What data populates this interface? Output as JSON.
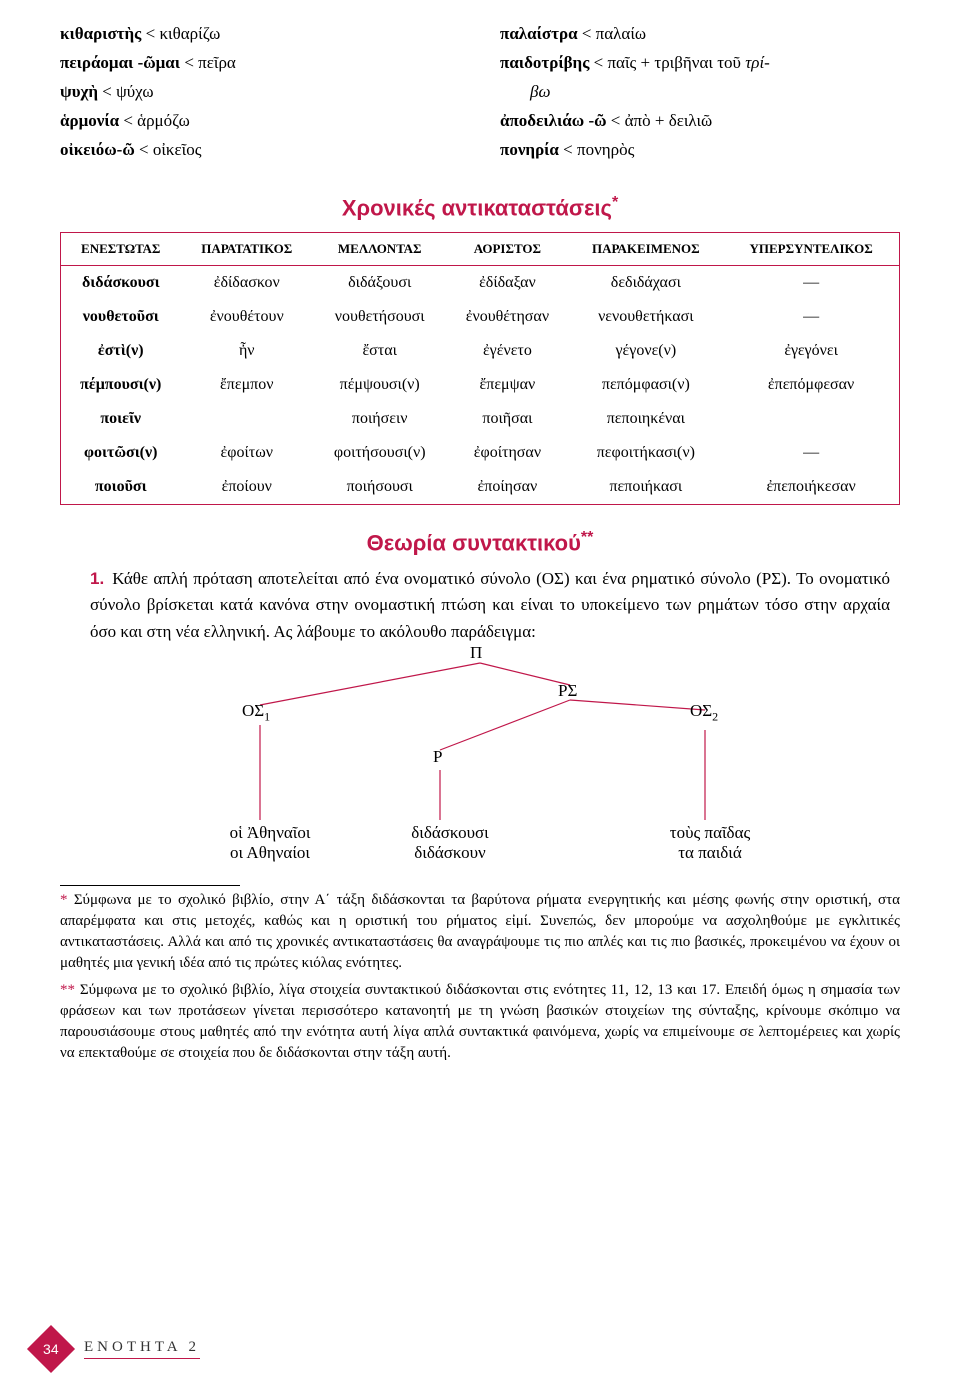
{
  "etymology": {
    "left": [
      [
        {
          "t": "κιθαριστὴς",
          "b": true
        },
        {
          "t": " < κιθαρίζω"
        }
      ],
      [
        {
          "t": "πειράομαι -ῶμαι",
          "b": true
        },
        {
          "t": " < πεῖρα"
        }
      ],
      [
        {
          "t": "ψυχὴ",
          "b": true
        },
        {
          "t": " < ψύχω"
        }
      ],
      [
        {
          "t": "ἁρμονία",
          "b": true
        },
        {
          "t": " < ἁρμόζω"
        }
      ],
      [
        {
          "t": "οἰκειόω-ῶ",
          "b": true
        },
        {
          "t": " < οἰκεῖος"
        }
      ]
    ],
    "right": [
      [
        {
          "t": "παλαίστρα",
          "b": true
        },
        {
          "t": " < παλαίω"
        }
      ],
      [
        {
          "t": "παιδοτρίβης",
          "b": true
        },
        {
          "t": " < παῖς + τριβῆναι τοῦ "
        },
        {
          "t": "τρί-",
          "i": true
        }
      ],
      [
        {
          "t": "βω",
          "i": true,
          "indent": true
        }
      ],
      [
        {
          "t": "ἀποδειλιάω -ῶ",
          "b": true
        },
        {
          "t": " < ἀπὸ + δειλιῶ"
        }
      ],
      [
        {
          "t": "πονηρία",
          "b": true
        },
        {
          "t": " < πονηρὸς"
        }
      ]
    ]
  },
  "section1_title": "Χρονικές αντικαταστάσεις",
  "table": {
    "headers": [
      "ΕΝΕΣΤΩΤΑΣ",
      "ΠΑΡΑΤΑΤΙΚΟΣ",
      "ΜΕΛΛΟΝΤΑΣ",
      "ΑΟΡΙΣΤΟΣ",
      "ΠΑΡΑΚΕΙΜΕΝΟΣ",
      "ΥΠΕΡΣΥΝΤΕΛΙΚΟΣ"
    ],
    "rows": [
      [
        "διδάσκουσι",
        "ἐδίδασκον",
        "διδάξουσι",
        "ἐδίδαξαν",
        "δεδιδάχασι",
        "—"
      ],
      [
        "νουθετοῦσι",
        "ἐνουθέτουν",
        "νουθετήσουσι",
        "ἐνουθέτησαν",
        "νενουθετήκασι",
        "—"
      ],
      [
        "ἐστὶ(ν)",
        "ἦν",
        "ἔσται",
        "ἐγένετο",
        "γέγονε(ν)",
        "ἐγεγόνει"
      ],
      [
        "πέμπουσι(ν)",
        "ἔπεμπον",
        "πέμψουσι(ν)",
        "ἔπεμψαν",
        "πεπόμφασι(ν)",
        "ἐπεπόμφεσαν"
      ],
      [
        "ποιεῖν",
        "",
        "ποιήσειν",
        "ποιῆσαι",
        "πεποιηκέναι",
        ""
      ],
      [
        "φοιτῶσι(ν)",
        "ἐφοίτων",
        "φοιτήσουσι(ν)",
        "ἐφοίτησαν",
        "πεφοιτήκασι(ν)",
        "—"
      ],
      [
        "ποιοῦσι",
        "ἐποίουν",
        "ποιήσουσι",
        "ἐποίησαν",
        "πεποιήκασι",
        "ἐπεποιήκεσαν"
      ]
    ]
  },
  "section2_title": "Θεωρία συντακτικού",
  "paragraph": "Κάθε απλή πρόταση αποτελείται από ένα ονοματικό σύνολο (ΟΣ) και ένα ρηματικό σύνολο (ΡΣ). Το ονοματικό σύνολο βρίσκεται κατά κανόνα στην ονομαστική πτώση και είναι το υποκείμενο των ρημάτων τόσο στην αρχαία όσο και στη νέα ελληνική. Ας λάβουμε το ακόλουθο παράδειγμα:",
  "num1": "1.",
  "tree": {
    "P": "Π",
    "RS": "ΡΣ",
    "OS1": "ΟΣ",
    "OS1sub": "1",
    "OS2": "ΟΣ",
    "OS2sub": "2",
    "R": "Ρ",
    "leaf1a": "οἱ Ἀθηναῖοι",
    "leaf1b": "οι Αθηναίοι",
    "leaf2a": "διδάσκουσι",
    "leaf2b": "διδάσκουν",
    "leaf3a": "τοὺς παῖδας",
    "leaf3b": "τα παιδιά",
    "line_color": "#c0174a"
  },
  "footnotes": {
    "f1": "* Σύμφωνα με το σχολικό βιβλίο, στην Α΄ τάξη διδάσκονται τα βαρύτονα ρήματα ενεργητικής και μέσης φωνής στην οριστική, στα απαρέμφατα και στις μετοχές, καθώς και η οριστική του ρήματος εἰμί. Συνεπώς, δεν μπορούμε να ασχοληθούμε με εγκλιτικές αντικαταστάσεις. Αλλά και από τις χρονικές αντικαταστάσεις θα αναγράψουμε τις πιο απλές και τις πιο βασικές, προκειμένου να έχουν οι μαθητές μια γενική ιδέα από τις πρώτες κιόλας ενότητες.",
    "f2": "** Σύμφωνα με το σχολικό βιβλίο, λίγα στοιχεία συντακτικού διδάσκονται στις ενότητες 11, 12, 13 και 17. Επειδή όμως η σημασία των φράσεων και των προτάσεων γίνεται περισσότερο κατανοητή με τη γνώση βασικών στοιχείων της σύνταξης, κρίνουμε σκόπιμο να παρουσιάσουμε στους μαθητές από την ενότητα αυτή λίγα απλά συντακτικά φαινόμενα, χωρίς να επιμείνουμε σε λεπτομέρειες και χωρίς να επεκταθούμε σε στοιχεία που δε διδάσκονται στην τάξη αυτή."
  },
  "page_number": "34",
  "unit_label": "ΕΝΟΤΗΤΑ 2",
  "colors": {
    "accent": "#c0174a"
  }
}
